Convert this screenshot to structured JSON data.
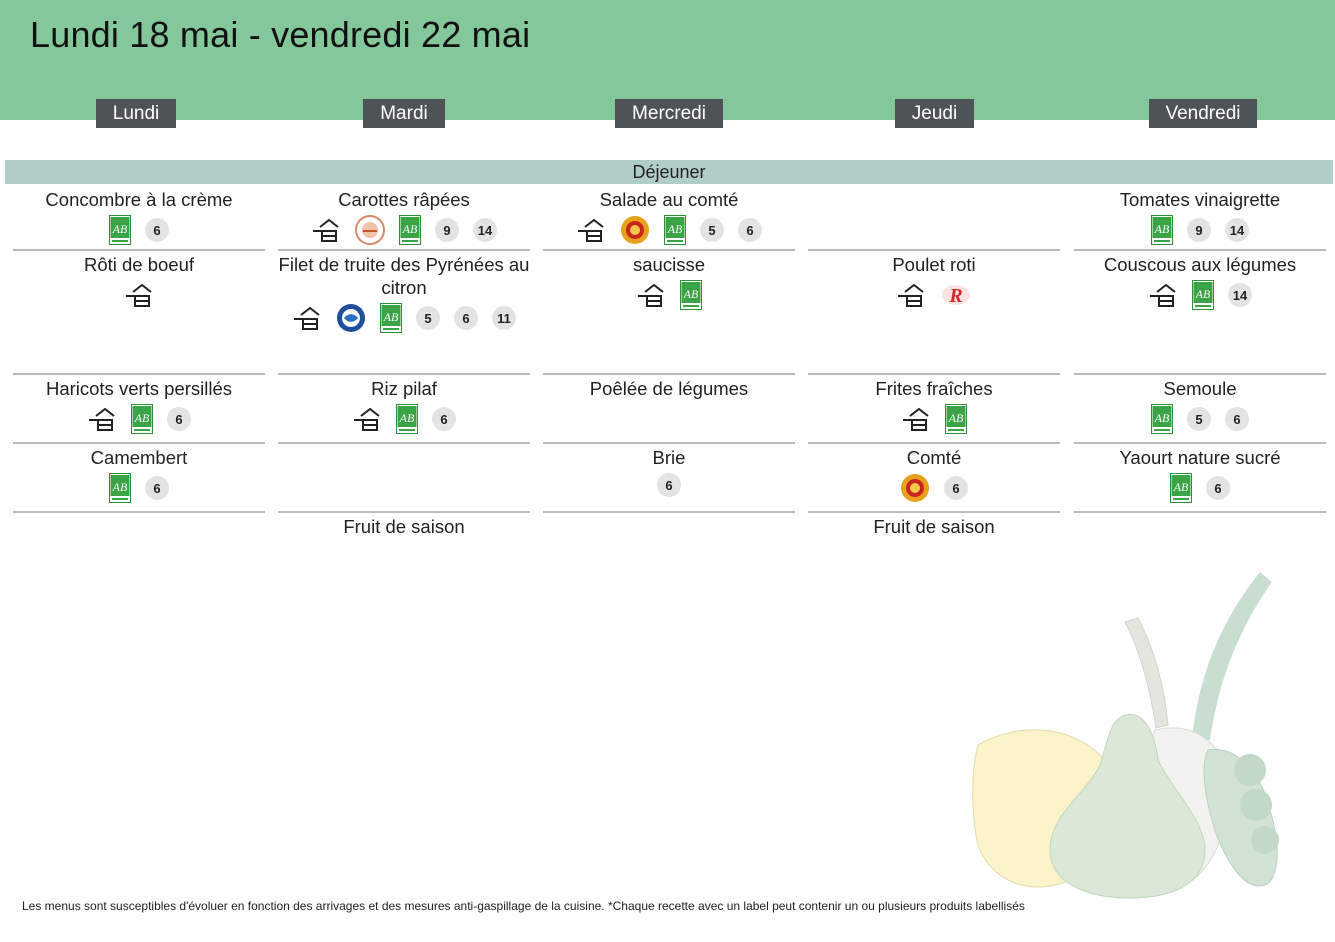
{
  "title": "Lundi 18 mai - vendredi 22 mai",
  "meal": "Déjeuner",
  "footer": "Les menus sont susceptibles d'évoluer en fonction des arrivages et des mesures anti-gaspillage de la cuisine. *Chaque recette avec un label peut contenir un ou plusieurs produits labellisés",
  "days": [
    {
      "label": "Lundi",
      "items": [
        {
          "dish": "Concombre à la crème",
          "icons": [
            "ab-icon"
          ],
          "badges": [
            "6"
          ]
        },
        {
          "dish": "Rôti de boeuf",
          "icons": [
            "homemade-icon"
          ],
          "badges": []
        },
        {
          "dish": "Haricots verts persillés",
          "icons": [
            "homemade-icon",
            "ab-icon"
          ],
          "badges": [
            "6"
          ]
        },
        {
          "dish": "Camembert",
          "icons": [
            "ab-icon"
          ],
          "badges": [
            "6"
          ]
        },
        {
          "dish": "",
          "icons": [],
          "badges": []
        }
      ]
    },
    {
      "label": "Mardi",
      "items": [
        {
          "dish": "Carottes râpées",
          "icons": [
            "homemade-icon",
            "local-label-icon",
            "ab-icon"
          ],
          "badges": [
            "9",
            "14"
          ]
        },
        {
          "dish": "Filet de truite des Pyrénées au citron",
          "icons": [
            "homemade-icon",
            "blue-fish-label-icon",
            "ab-icon"
          ],
          "badges": [
            "5",
            "6",
            "11"
          ]
        },
        {
          "dish": "Riz pilaf",
          "icons": [
            "homemade-icon",
            "ab-icon"
          ],
          "badges": [
            "6"
          ]
        },
        {
          "dish": "",
          "icons": [],
          "badges": []
        },
        {
          "dish": "Fruit de saison",
          "icons": [],
          "badges": []
        }
      ]
    },
    {
      "label": "Mercredi",
      "items": [
        {
          "dish": "Salade au comté",
          "icons": [
            "homemade-icon",
            "aop-icon",
            "ab-icon"
          ],
          "badges": [
            "5",
            "6"
          ]
        },
        {
          "dish": "saucisse",
          "icons": [
            "homemade-icon",
            "ab-icon"
          ],
          "badges": []
        },
        {
          "dish": "Poêlée de légumes",
          "icons": [],
          "badges": []
        },
        {
          "dish": "Brie",
          "icons": [],
          "badges": [
            "6"
          ]
        },
        {
          "dish": "",
          "icons": [],
          "badges": []
        }
      ]
    },
    {
      "label": "Jeudi",
      "items": [
        {
          "dish": "",
          "icons": [],
          "badges": []
        },
        {
          "dish": "Poulet roti",
          "icons": [
            "homemade-icon",
            "label-rouge-icon"
          ],
          "badges": []
        },
        {
          "dish": "Frites fraîches",
          "icons": [
            "homemade-icon",
            "ab-icon"
          ],
          "badges": []
        },
        {
          "dish": "Comté",
          "icons": [
            "aop-icon"
          ],
          "badges": [
            "6"
          ]
        },
        {
          "dish": "Fruit de saison",
          "icons": [],
          "badges": []
        }
      ]
    },
    {
      "label": "Vendredi",
      "items": [
        {
          "dish": "Tomates vinaigrette",
          "icons": [
            "ab-icon"
          ],
          "badges": [
            "9",
            "14"
          ]
        },
        {
          "dish": "Couscous aux légumes",
          "icons": [
            "homemade-icon",
            "ab-icon"
          ],
          "badges": [
            "14"
          ]
        },
        {
          "dish": "Semoule",
          "icons": [
            "ab-icon"
          ],
          "badges": [
            "5",
            "6"
          ]
        },
        {
          "dish": "Yaourt nature sucré",
          "icons": [
            "ab-icon"
          ],
          "badges": [
            "6"
          ]
        },
        {
          "dish": "",
          "icons": [],
          "badges": []
        }
      ]
    }
  ]
}
